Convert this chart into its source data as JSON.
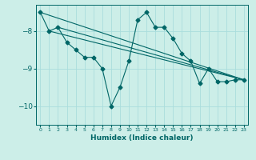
{
  "xlabel": "Humidex (Indice chaleur)",
  "bg_color": "#cceee8",
  "grid_color": "#aadddd",
  "line_color": "#006666",
  "xlim": [
    -0.5,
    23.5
  ],
  "ylim": [
    -10.5,
    -7.3
  ],
  "yticks": [
    -10,
    -9,
    -8
  ],
  "xticks": [
    0,
    1,
    2,
    3,
    4,
    5,
    6,
    7,
    8,
    9,
    10,
    11,
    12,
    13,
    14,
    15,
    16,
    17,
    18,
    19,
    20,
    21,
    22,
    23
  ],
  "series": [
    [
      0,
      -7.5
    ],
    [
      1,
      -8.0
    ],
    [
      2,
      -7.9
    ],
    [
      3,
      -8.3
    ],
    [
      4,
      -8.5
    ],
    [
      5,
      -8.7
    ],
    [
      6,
      -8.7
    ],
    [
      7,
      -9.0
    ],
    [
      8,
      -10.0
    ],
    [
      9,
      -9.5
    ],
    [
      10,
      -8.8
    ],
    [
      11,
      -7.7
    ],
    [
      12,
      -7.5
    ],
    [
      13,
      -7.9
    ],
    [
      14,
      -7.9
    ],
    [
      15,
      -8.2
    ],
    [
      16,
      -8.6
    ],
    [
      17,
      -8.8
    ],
    [
      18,
      -9.4
    ],
    [
      19,
      -9.0
    ],
    [
      20,
      -9.35
    ],
    [
      21,
      -9.35
    ],
    [
      22,
      -9.3
    ],
    [
      23,
      -9.3
    ]
  ],
  "line1": [
    [
      0,
      -7.5
    ],
    [
      23,
      -9.3
    ]
  ],
  "line2": [
    [
      1,
      -8.0
    ],
    [
      23,
      -9.3
    ]
  ],
  "line3": [
    [
      2,
      -7.9
    ],
    [
      23,
      -9.3
    ]
  ]
}
